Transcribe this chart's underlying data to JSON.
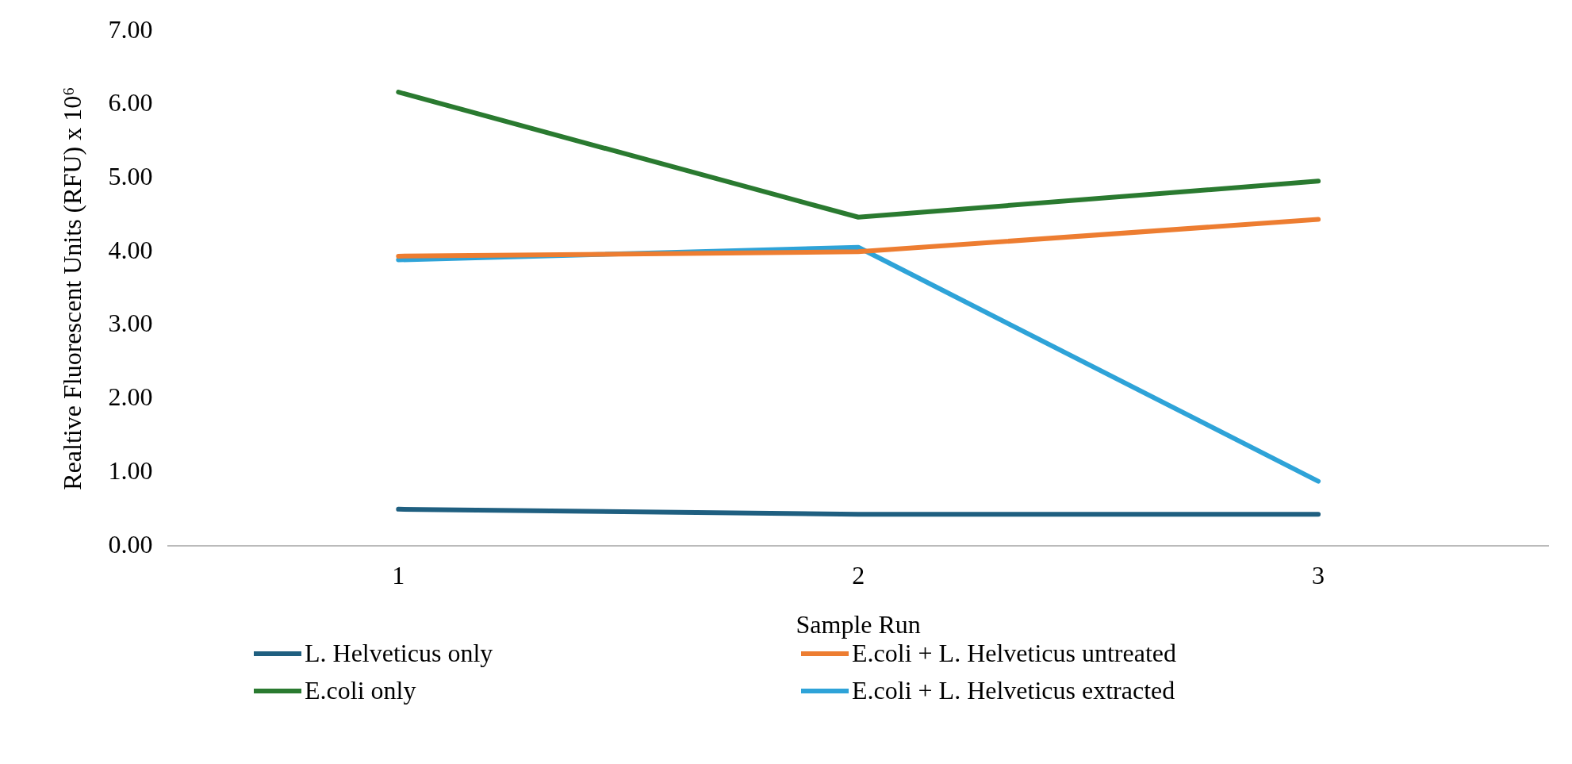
{
  "chart_data": {
    "type": "line",
    "xlabel": "Sample Run",
    "ylabel": "Realtive Fluorescent Units (RFU) x 10⁶",
    "categories": [
      "1",
      "2",
      "3"
    ],
    "series": [
      {
        "name": "L. Helveticus only",
        "color": "#1f5f80",
        "values": [
          0.5,
          0.43,
          0.43
        ]
      },
      {
        "name": "E.coli + L. Helveticus untreated",
        "color": "#ed7d31",
        "values": [
          3.94,
          4.0,
          4.44
        ]
      },
      {
        "name": "E.coli only",
        "color": "#2a7a30",
        "values": [
          6.17,
          4.47,
          4.96
        ]
      },
      {
        "name": "E.coli + L. Helveticus extracted",
        "color": "#2ea3d8",
        "values": [
          3.89,
          4.06,
          0.88
        ]
      }
    ],
    "ylim": [
      0,
      7
    ],
    "yticks": [
      {
        "value": 0,
        "label": "0.00"
      },
      {
        "value": 1,
        "label": "1.00"
      },
      {
        "value": 2,
        "label": "2.00"
      },
      {
        "value": 3,
        "label": "3.00"
      },
      {
        "value": 4,
        "label": "4.00"
      },
      {
        "value": 5,
        "label": "5.00"
      },
      {
        "value": 6,
        "label": "6.00"
      },
      {
        "value": 7,
        "label": "7.00"
      }
    ],
    "grid": false,
    "legend": "bottom",
    "marker": "none",
    "line_style": "solid"
  }
}
